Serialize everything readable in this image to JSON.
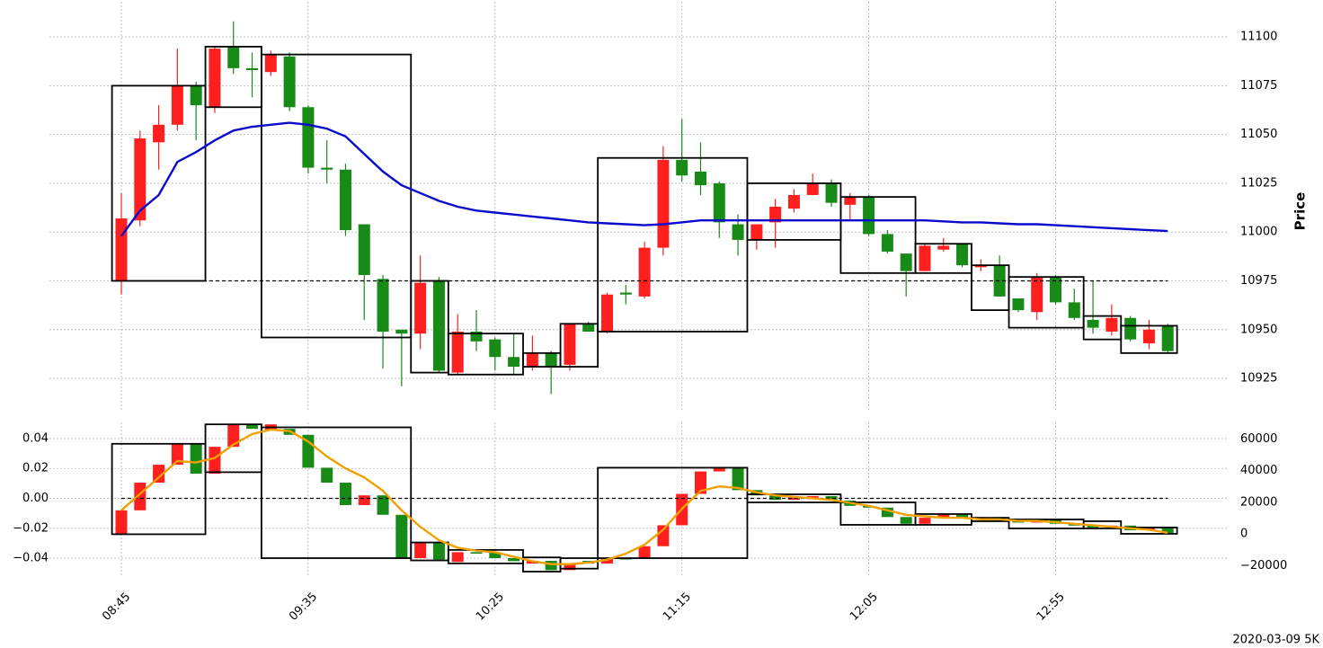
{
  "chart_data": [
    {
      "type": "candlestick",
      "ylabel": "Price",
      "open": [
        10975,
        11006,
        11046,
        11055,
        11075,
        11064,
        11095,
        11084,
        11082,
        11090,
        11064,
        11033,
        11032,
        11004,
        10976,
        10950,
        10948,
        10975,
        10928,
        10949,
        10945,
        10936,
        10931,
        10938,
        10932,
        10953,
        10949,
        10969,
        10967,
        10992,
        11037,
        11031,
        11025,
        11004,
        10996,
        11005,
        11012,
        11019,
        11025,
        11014,
        11018,
        10999,
        10989,
        10980,
        10991,
        10994,
        10982,
        10983,
        10966,
        10959,
        10977,
        10964,
        10955,
        10949,
        10956,
        10943,
        10952
      ],
      "high": [
        11020,
        11052,
        11065,
        11094,
        11077,
        11095,
        11108,
        11092,
        11093,
        11092,
        11065,
        11047,
        11035,
        11004,
        10978,
        10950,
        10988,
        10977,
        10958,
        10960,
        10946,
        10948,
        10947,
        10939,
        10953,
        10954,
        10969,
        10973,
        10995,
        11044,
        11058,
        11046,
        11026,
        11009,
        11004,
        11017,
        11022,
        11030,
        11027,
        11020,
        11019,
        11001,
        10989,
        10994,
        10997,
        10994,
        10986,
        10988,
        10966,
        10979,
        10978,
        10971,
        10975,
        10963,
        10957,
        10955,
        10953
      ],
      "low": [
        10968,
        11003,
        11032,
        11052,
        11047,
        11061,
        11081,
        11069,
        11080,
        11062,
        11030,
        11025,
        10998,
        10955,
        10930,
        10921,
        10940,
        10928,
        10927,
        10939,
        10929,
        10927,
        10929,
        10917,
        10929,
        10949,
        10948,
        10963,
        10966,
        10988,
        11026,
        11019,
        10997,
        10988,
        10991,
        10992,
        11010,
        11019,
        11013,
        11006,
        10998,
        10989,
        10967,
        10980,
        10990,
        10982,
        10980,
        10967,
        10959,
        10955,
        10963,
        10955,
        10948,
        10947,
        10944,
        10940,
        10938
      ],
      "close": [
        11007,
        11048,
        11055,
        11075,
        11065,
        11094,
        11084,
        11083,
        11091,
        11064,
        11033,
        11032,
        11001,
        10978,
        10949,
        10948,
        10974,
        10929,
        10949,
        10944,
        10936,
        10931,
        10938,
        10931,
        10953,
        10949,
        10968,
        10968,
        10992,
        11037,
        11029,
        11024,
        11005,
        10996,
        11004,
        11013,
        11019,
        11025,
        11015,
        11018,
        10999,
        10990,
        10980,
        10993,
        10993,
        10983,
        10983,
        10967,
        10960,
        10977,
        10964,
        10956,
        10951,
        10956,
        10945,
        10950,
        10939
      ],
      "up_color": "#ff1f1f",
      "down_color": "#178a17",
      "lines": [
        {
          "color": "#0a0acc",
          "values": [
            10998,
            11011,
            11019,
            11036,
            11041,
            11047,
            11052,
            11054,
            11055,
            11056,
            11055,
            11053,
            11049,
            11040,
            11031,
            11024,
            11020,
            11016,
            11013,
            11011,
            11010,
            11009,
            11008,
            11007,
            11006,
            11005,
            11004.5,
            11004,
            11003.5,
            11004,
            11005,
            11006,
            11006,
            11006,
            11006,
            11006,
            11006,
            11006,
            11006,
            11006,
            11006,
            11006,
            11006,
            11006,
            11005.5,
            11005,
            11005,
            11004.5,
            11004,
            11004,
            11003.5,
            11003,
            11002.5,
            11002,
            11001.5,
            11001,
            11000.5
          ]
        }
      ],
      "hlines": [
        10975
      ],
      "boxes": [
        {
          "start": 0,
          "end": 4,
          "low": 10975,
          "high": 11075
        },
        {
          "start": 5,
          "end": 7,
          "low": 11064,
          "high": 11095
        },
        {
          "start": 8,
          "end": 15,
          "low": 10946,
          "high": 11091
        },
        {
          "start": 16,
          "end": 17,
          "low": 10928,
          "high": 10975
        },
        {
          "start": 18,
          "end": 21,
          "low": 10927,
          "high": 10948
        },
        {
          "start": 22,
          "end": 23,
          "low": 10931,
          "high": 10938
        },
        {
          "start": 24,
          "end": 25,
          "low": 10931,
          "high": 10953
        },
        {
          "start": 26,
          "end": 33,
          "low": 10949,
          "high": 11038
        },
        {
          "start": 34,
          "end": 38,
          "low": 10996,
          "high": 11025
        },
        {
          "start": 39,
          "end": 42,
          "low": 10979,
          "high": 11018
        },
        {
          "start": 43,
          "end": 45,
          "low": 10979,
          "high": 10994
        },
        {
          "start": 46,
          "end": 47,
          "low": 10960,
          "high": 10983
        },
        {
          "start": 48,
          "end": 51,
          "low": 10951,
          "high": 10977
        },
        {
          "start": 52,
          "end": 53,
          "low": 10945,
          "high": 10957
        },
        {
          "start": 54,
          "end": 56,
          "low": 10938,
          "high": 10952
        }
      ],
      "ylim": [
        10908,
        11118
      ],
      "yticks": [
        10925,
        10950,
        10975,
        11000,
        11025,
        11050,
        11075,
        11100
      ],
      "grid": true
    },
    {
      "type": "candlestick",
      "categories": [
        "08:45",
        null,
        null,
        null,
        null,
        null,
        null,
        null,
        null,
        null,
        "09:35",
        null,
        null,
        null,
        null,
        null,
        null,
        null,
        null,
        null,
        "10:25",
        null,
        null,
        null,
        null,
        null,
        null,
        null,
        null,
        null,
        "11:15",
        null,
        null,
        null,
        null,
        null,
        null,
        null,
        null,
        null,
        "12:05",
        null,
        null,
        null,
        null,
        null,
        null,
        null,
        null,
        null,
        "12:55",
        null,
        null,
        null,
        null,
        null,
        null
      ],
      "open": [
        -0.024,
        -0.008,
        0.0105,
        0.0225,
        0.0365,
        0.0165,
        0.0345,
        0.0495,
        0.046,
        0.0465,
        0.0425,
        0.0205,
        0.0105,
        -0.0045,
        0.002,
        -0.011,
        -0.04,
        -0.03,
        -0.0425,
        -0.036,
        -0.036,
        -0.04,
        -0.0436,
        -0.0418,
        -0.048,
        -0.0418,
        -0.0436,
        -0.04,
        -0.04,
        -0.032,
        -0.018,
        0.003,
        0.018,
        0.0205,
        0.0055,
        0.002,
        -0.001,
        0,
        0.0015,
        -0.0015,
        -0.005,
        -0.0062,
        -0.0125,
        -0.017,
        -0.013,
        -0.011,
        -0.0135,
        -0.0125,
        -0.015,
        -0.0162,
        -0.014,
        -0.017,
        -0.0182,
        -0.0195,
        -0.0182,
        -0.0213,
        -0.02
      ],
      "close": [
        -0.008,
        0.0105,
        0.0225,
        0.0365,
        0.0165,
        0.0345,
        0.0495,
        0.0465,
        0.0495,
        0.0425,
        0.0205,
        0.0105,
        -0.0045,
        0.002,
        -0.011,
        -0.04,
        -0.03,
        -0.041,
        -0.036,
        -0.037,
        -0.04,
        -0.042,
        -0.0418,
        -0.048,
        -0.0436,
        -0.0436,
        -0.04,
        -0.0405,
        -0.032,
        -0.018,
        0.003,
        0.018,
        0.0205,
        0.0055,
        0.002,
        -0.001,
        0.001,
        0.0015,
        -0.0015,
        -0.005,
        -0.0062,
        -0.0125,
        -0.017,
        -0.013,
        -0.011,
        -0.0135,
        -0.0125,
        -0.015,
        -0.0162,
        -0.014,
        -0.017,
        -0.0182,
        -0.0195,
        -0.0182,
        -0.0213,
        -0.02,
        -0.0237
      ],
      "up_color": "#ff1f1f",
      "down_color": "#178a17",
      "lines": [
        {
          "color": "#f0a000",
          "values": [
            -0.008,
            0.003,
            0.014,
            0.025,
            0.024,
            0.027,
            0.036,
            0.043,
            0.046,
            0.045,
            0.038,
            0.028,
            0.02,
            0.014,
            0.005,
            -0.008,
            -0.019,
            -0.028,
            -0.033,
            -0.035,
            -0.036,
            -0.039,
            -0.042,
            -0.044,
            -0.044,
            -0.043,
            -0.041,
            -0.037,
            -0.031,
            -0.021,
            -0.007,
            0.005,
            0.008,
            0.007,
            0.004,
            0.002,
            0.001,
            0,
            -0.001,
            -0.003,
            -0.005,
            -0.008,
            -0.011,
            -0.012,
            -0.013,
            -0.013,
            -0.014,
            -0.014,
            -0.015,
            -0.015,
            -0.016,
            -0.017,
            -0.018,
            -0.019,
            -0.02,
            -0.021,
            -0.023
          ]
        }
      ],
      "hlines": [
        0
      ],
      "boxes": [
        {
          "start": 0,
          "end": 4,
          "low": -0.024,
          "high": 0.0365
        },
        {
          "start": 5,
          "end": 7,
          "low": 0.0175,
          "high": 0.0495
        },
        {
          "start": 8,
          "end": 15,
          "low": -0.04,
          "high": 0.0475
        },
        {
          "start": 16,
          "end": 17,
          "low": -0.0415,
          "high": -0.0295
        },
        {
          "start": 18,
          "end": 21,
          "low": -0.0435,
          "high": -0.0345
        },
        {
          "start": 22,
          "end": 23,
          "low": -0.049,
          "high": -0.0395
        },
        {
          "start": 24,
          "end": 25,
          "low": -0.047,
          "high": -0.04
        },
        {
          "start": 26,
          "end": 33,
          "low": -0.04,
          "high": 0.0205
        },
        {
          "start": 34,
          "end": 38,
          "low": -0.0027,
          "high": 0.0027
        },
        {
          "start": 39,
          "end": 42,
          "low": -0.0177,
          "high": -0.0027
        },
        {
          "start": 43,
          "end": 45,
          "low": -0.0177,
          "high": -0.0105
        },
        {
          "start": 46,
          "end": 47,
          "low": -0.0153,
          "high": -0.013
        },
        {
          "start": 48,
          "end": 51,
          "low": -0.0201,
          "high": -0.0141
        },
        {
          "start": 52,
          "end": 53,
          "low": -0.0201,
          "high": -0.0153
        },
        {
          "start": 54,
          "end": 56,
          "low": -0.0237,
          "high": -0.0195
        }
      ],
      "ylim": [
        -0.0514,
        0.0508
      ],
      "yticks": [
        {
          "value": -0.04,
          "label": "−0.04"
        },
        {
          "value": -0.02,
          "label": "−0.02"
        },
        {
          "value": 0,
          "label": "0.00"
        },
        0.02,
        0.04
      ],
      "y2lim": [
        -26000,
        70500
      ],
      "y2ticks": [
        {
          "value": -20000,
          "label": "−20000"
        },
        0,
        20000,
        40000,
        60000
      ],
      "grid": true,
      "note": "2020-03-09 5K"
    }
  ]
}
